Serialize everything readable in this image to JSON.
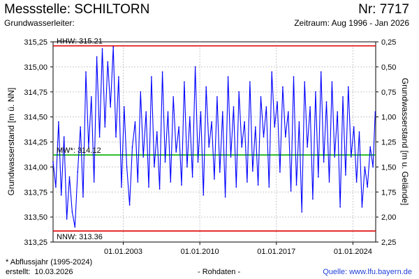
{
  "header": {
    "station_label": "Messstelle:",
    "station_name": "SCHILTORN",
    "number_label": "Nr:",
    "number": "7717",
    "aquifer_label": "Grundwasserleiter:",
    "period_label": "Zeitraum:",
    "period": "Aug 1996 - Jan 2026"
  },
  "footer": {
    "note": "* Abflussjahr (1995-2024)",
    "created_label": "erstellt:",
    "created_date": "10.03.2026",
    "rawdata": "- Rohdaten -",
    "source": "Quelle: www.lfu.bayern.de"
  },
  "colors": {
    "series": "#0000ff",
    "hhw": "#e00000",
    "nnw": "#e00000",
    "mw": "#00b000",
    "grid": "#c8c8c8",
    "frame": "#000000"
  },
  "chart_data": {
    "type": "line",
    "xlabel": "",
    "ylabel": "Grundwasserstand [m ü. NN]",
    "ylabel_right": "Grundwasserstand [m u. Gelände]",
    "ylim": [
      313.25,
      315.25
    ],
    "xlim": [
      "1996-08-01",
      "2026-01-31"
    ],
    "y_ticks": [
      "313,25",
      "313,50",
      "313,75",
      "314,00",
      "314,25",
      "314,50",
      "314,75",
      "315,00",
      "315,25"
    ],
    "y_ticks_right": [
      "0,25",
      "0,50",
      "0,75",
      "1,00",
      "1,25",
      "1,50",
      "1,75",
      "2,00",
      "2,25"
    ],
    "x_ticks": [
      {
        "date": "2003-01-01",
        "label": "01.01.2003"
      },
      {
        "date": "2010-01-01",
        "label": "01.01.2010"
      },
      {
        "date": "2017-01-01",
        "label": "01.01.2017"
      },
      {
        "date": "2024-01-01",
        "label": "01.01.2024"
      }
    ],
    "grid": true,
    "reference_lines": [
      {
        "name": "HHW",
        "label": "HHW: 315.21",
        "value": 315.21
      },
      {
        "name": "MW",
        "label": "MW*: 314.12",
        "value": 314.12
      },
      {
        "name": "NNW",
        "label": "NNW: 313.36",
        "value": 313.36
      }
    ],
    "series": [
      {
        "x": [
          "1996-08-01",
          "1996-11-01",
          "1997-02-01",
          "1997-05-01",
          "1997-08-01",
          "1997-11-01",
          "1998-02-01",
          "1998-05-01",
          "1998-08-01",
          "1998-11-01",
          "1999-02-01",
          "1999-05-01",
          "1999-08-01",
          "1999-11-01",
          "2000-02-01",
          "2000-05-01",
          "2000-08-01",
          "2000-11-01",
          "2001-02-01",
          "2001-05-01",
          "2001-08-01",
          "2001-11-01",
          "2002-02-01",
          "2002-05-01",
          "2002-08-01",
          "2002-11-01",
          "2003-02-01",
          "2003-05-01",
          "2003-08-01",
          "2003-11-01",
          "2004-02-01",
          "2004-05-01",
          "2004-08-01",
          "2004-11-01",
          "2005-02-01",
          "2005-05-01",
          "2005-08-01",
          "2005-11-01",
          "2006-02-01",
          "2006-05-01",
          "2006-08-01",
          "2006-11-01",
          "2007-02-01",
          "2007-05-01",
          "2007-08-01",
          "2007-11-01",
          "2008-02-01",
          "2008-05-01",
          "2008-08-01",
          "2008-11-01",
          "2009-02-01",
          "2009-05-01",
          "2009-08-01",
          "2009-11-01",
          "2010-02-01",
          "2010-05-01",
          "2010-08-01",
          "2010-11-01",
          "2011-02-01",
          "2011-05-01",
          "2011-08-01",
          "2011-11-01",
          "2012-02-01",
          "2012-05-01",
          "2012-08-01",
          "2012-11-01",
          "2013-02-01",
          "2013-05-01",
          "2013-08-01",
          "2013-11-01",
          "2014-02-01",
          "2014-05-01",
          "2014-08-01",
          "2014-11-01",
          "2015-02-01",
          "2015-05-01",
          "2015-08-01",
          "2015-11-01",
          "2016-02-01",
          "2016-05-01",
          "2016-08-01",
          "2016-11-01",
          "2017-02-01",
          "2017-05-01",
          "2017-08-01",
          "2017-11-01",
          "2018-02-01",
          "2018-05-01",
          "2018-08-01",
          "2018-11-01",
          "2019-02-01",
          "2019-05-01",
          "2019-08-01",
          "2019-11-01",
          "2020-02-01",
          "2020-05-01",
          "2020-08-01",
          "2020-11-01",
          "2021-02-01",
          "2021-05-01",
          "2021-08-01",
          "2021-11-01",
          "2022-02-01",
          "2022-05-01",
          "2022-08-01",
          "2022-11-01",
          "2023-02-01",
          "2023-05-01",
          "2023-08-01",
          "2023-11-01",
          "2024-02-01",
          "2024-05-01",
          "2024-08-01",
          "2024-11-01",
          "2025-02-01",
          "2025-05-01",
          "2025-08-01",
          "2025-11-01",
          "2026-01-15"
        ],
        "values": [
          314.05,
          313.8,
          314.45,
          313.72,
          314.3,
          313.48,
          313.9,
          313.55,
          313.4,
          313.95,
          314.4,
          313.7,
          314.95,
          314.2,
          314.7,
          313.85,
          315.1,
          314.3,
          315.18,
          314.4,
          315.05,
          314.6,
          315.2,
          314.3,
          314.9,
          313.8,
          314.6,
          314.0,
          313.62,
          314.2,
          314.45,
          313.85,
          314.75,
          314.1,
          314.55,
          313.8,
          314.9,
          314.0,
          314.35,
          313.78,
          314.95,
          314.05,
          314.55,
          313.85,
          314.7,
          314.15,
          314.4,
          313.82,
          314.85,
          314.0,
          314.5,
          313.9,
          315.0,
          314.05,
          314.55,
          313.72,
          314.8,
          314.2,
          314.45,
          313.88,
          314.7,
          313.95,
          314.55,
          313.7,
          314.9,
          314.1,
          314.6,
          313.8,
          314.75,
          314.2,
          314.45,
          313.85,
          314.85,
          313.96,
          314.4,
          313.82,
          314.7,
          314.3,
          314.6,
          313.8,
          314.95,
          314.4,
          314.65,
          313.95,
          314.8,
          314.3,
          314.55,
          313.76,
          314.9,
          313.82,
          314.45,
          313.55,
          314.85,
          314.2,
          314.6,
          313.68,
          314.75,
          313.9,
          314.95,
          314.05,
          314.65,
          313.85,
          314.85,
          314.1,
          314.55,
          313.6,
          314.7,
          313.92,
          314.8,
          314.1,
          314.4,
          313.85,
          314.35,
          313.6,
          314.0,
          313.8,
          314.2,
          314.0,
          314.55
        ]
      }
    ]
  }
}
